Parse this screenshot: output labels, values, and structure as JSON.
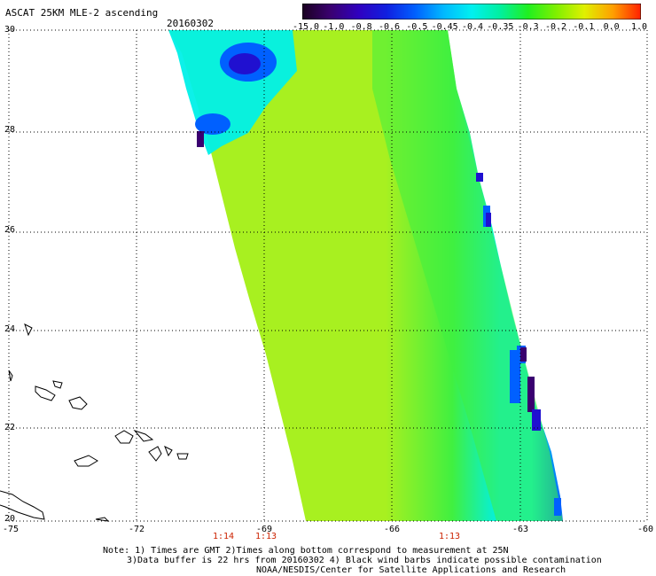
{
  "header": {
    "title": "ASCAT 25KM MLE-2 ascending",
    "date": "20160302"
  },
  "colorbar": {
    "labels": [
      "-15.0",
      "-1.0",
      "-0.8",
      "-0.6",
      "-0.5",
      "-0.45",
      "-0.4",
      "-0.35",
      "-0.3",
      "-0.2",
      "-0.1",
      "0.0",
      "1.0"
    ],
    "colors": [
      "#1a0020",
      "#3a0070",
      "#3000c0",
      "#1020e0",
      "#0060ff",
      "#00b8ff",
      "#00f0f0",
      "#00f0a0",
      "#20f020",
      "#80f000",
      "#e0f000",
      "#ffa000",
      "#ff2000"
    ]
  },
  "axes": {
    "lat_labels": [
      "30",
      "28",
      "26",
      "24",
      "22",
      "20"
    ],
    "lon_labels": [
      "-75",
      "-72",
      "-69",
      "-66",
      "-63",
      "-60"
    ]
  },
  "times": [
    "1:14",
    "1:13",
    "1:13"
  ],
  "notes": {
    "line1": "Note: 1) Times are GMT 2)Times along bottom correspond to measurement at 25N",
    "line2": "3)Data buffer is 22 hrs from 20160302 4) Black wind barbs indicate possible contamination",
    "line3": "NOAA/NESDIS/Center for Satellite Applications and Research"
  },
  "map_colors": {
    "background_swath": "#a8f020",
    "mid_swath": "#40f040",
    "edge_cyan": "#00f0e8",
    "edge_blue": "#0060ff",
    "edge_deep": "#2010d0",
    "edge_violet": "#3a0070",
    "grid": "#000000",
    "coast": "#000000"
  }
}
